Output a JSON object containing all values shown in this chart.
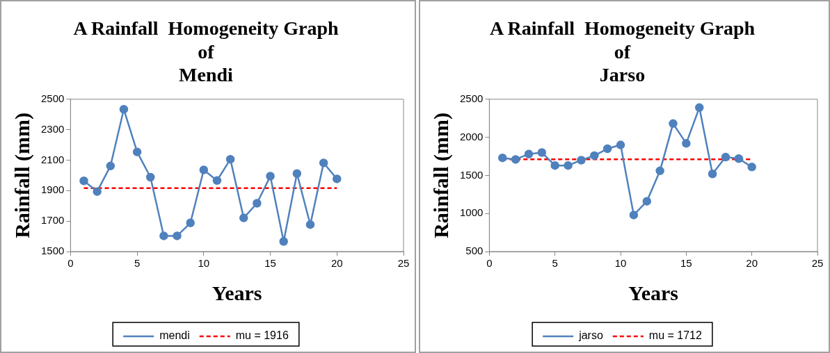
{
  "chart_data": [
    {
      "type": "line",
      "title": "A Rainfall  Homogeneity Graph\nof\nMendi",
      "xlabel": "Years",
      "ylabel": "Rainfall (mm)",
      "xlim": [
        0,
        25
      ],
      "xticks": [
        0,
        5,
        10,
        15,
        20,
        25
      ],
      "ylim": [
        1500,
        2500
      ],
      "yticks": [
        1500,
        1700,
        1900,
        2100,
        2300,
        2500
      ],
      "grid": false,
      "legend": "bottom",
      "series": [
        {
          "name": "mendi",
          "color": "#4f81bd",
          "marker": "circle",
          "line_style": "solid",
          "x": [
            1,
            2,
            3,
            4,
            5,
            6,
            7,
            8,
            9,
            10,
            11,
            12,
            13,
            14,
            15,
            16,
            17,
            18,
            19,
            20
          ],
          "values": [
            1964,
            1894,
            2062,
            2434,
            2154,
            1988,
            1603,
            1603,
            1688,
            2036,
            1966,
            2106,
            1721,
            1817,
            1995,
            1566,
            2012,
            1677,
            2082,
            1977
          ]
        },
        {
          "name": "mu = 1916",
          "color": "#ff0000",
          "marker": "none",
          "line_style": "dashed",
          "x": [
            1,
            20
          ],
          "values": [
            1916,
            1916
          ]
        }
      ]
    },
    {
      "type": "line",
      "title": "A Rainfall  Homogeneity Graph\nof\nJarso",
      "xlabel": "Years",
      "ylabel": "Rainfall (mm)",
      "xlim": [
        0,
        25
      ],
      "xticks": [
        0,
        5,
        10,
        15,
        20,
        25
      ],
      "ylim": [
        500,
        2500
      ],
      "yticks": [
        500,
        1000,
        1500,
        2000,
        2500
      ],
      "grid": false,
      "legend": "bottom",
      "series": [
        {
          "name": "jarso",
          "color": "#4f81bd",
          "marker": "circle",
          "line_style": "solid",
          "x": [
            1,
            2,
            3,
            4,
            5,
            6,
            7,
            8,
            9,
            10,
            11,
            12,
            13,
            14,
            15,
            16,
            17,
            18,
            19,
            20
          ],
          "values": [
            1730,
            1710,
            1780,
            1800,
            1630,
            1630,
            1700,
            1760,
            1850,
            1900,
            980,
            1160,
            1560,
            2180,
            1920,
            2390,
            1520,
            1740,
            1720,
            1610
          ]
        },
        {
          "name": "mu = 1712",
          "color": "#ff0000",
          "marker": "none",
          "line_style": "dashed",
          "x": [
            1,
            20
          ],
          "values": [
            1712,
            1712
          ]
        }
      ]
    }
  ]
}
